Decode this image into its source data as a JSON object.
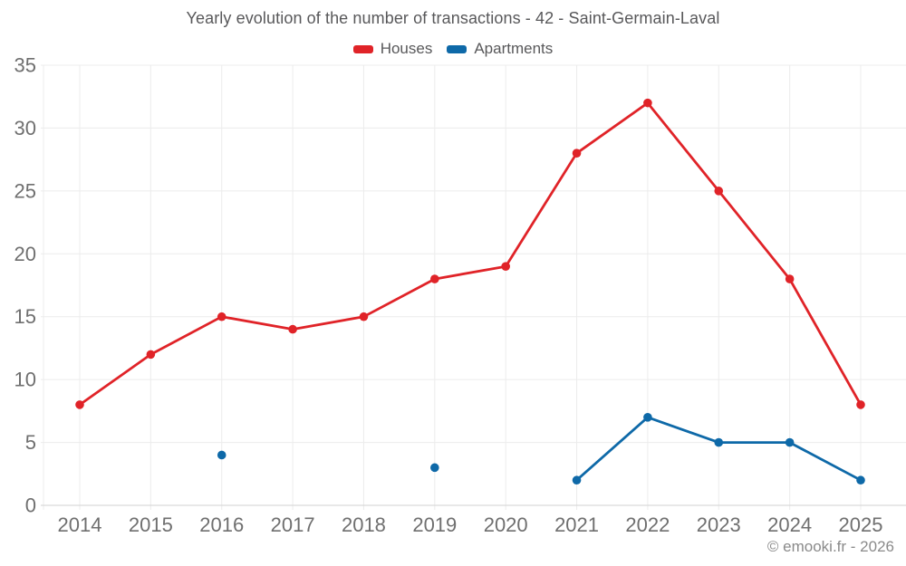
{
  "chart_data": {
    "type": "line",
    "title": "Yearly evolution of the number of transactions - 42 - Saint-Germain-Laval",
    "categories": [
      "2014",
      "2015",
      "2016",
      "2017",
      "2018",
      "2019",
      "2020",
      "2021",
      "2022",
      "2023",
      "2024",
      "2025"
    ],
    "series": [
      {
        "name": "Houses",
        "color": "#e02328",
        "values": [
          8,
          12,
          15,
          14,
          15,
          18,
          19,
          28,
          32,
          25,
          18,
          8
        ]
      },
      {
        "name": "Apartments",
        "color": "#0e69a8",
        "values": [
          null,
          null,
          4,
          null,
          null,
          3,
          null,
          2,
          7,
          5,
          5,
          2
        ]
      }
    ],
    "ylim": [
      0,
      35
    ],
    "yticks": [
      0,
      5,
      10,
      15,
      20,
      25,
      30,
      35
    ],
    "xlabel": "",
    "ylabel": "",
    "grid": true,
    "legend_position": "top"
  },
  "footer": {
    "credit": "© emooki.fr - 2026"
  },
  "colors": {
    "background": "#ffffff",
    "grid": "#ececec",
    "axis_line": "#d9d9d9",
    "tick_text": "#6f6f6f",
    "title_text": "#58585a",
    "footer_text": "#8a8a8a"
  }
}
